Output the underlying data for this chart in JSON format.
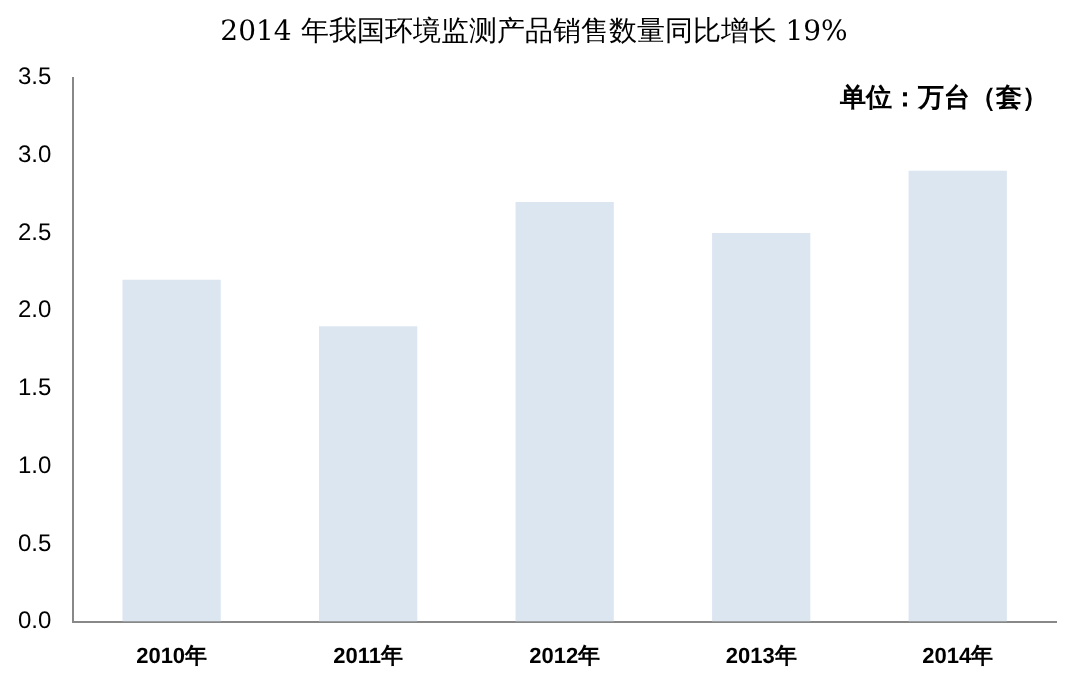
{
  "chart_data": {
    "type": "bar",
    "title": "2014 年我国环境监测产品销售数量同比增长 19%",
    "annotations": [
      "单位：万台（套）"
    ],
    "categories": [
      "2010年",
      "2011年",
      "2012年",
      "2013年",
      "2014年"
    ],
    "values": [
      2.2,
      1.9,
      2.7,
      2.5,
      2.9
    ],
    "color": "#dce6f1",
    "ylim": [
      0,
      3.5
    ],
    "yticks": [
      {
        "value": 0,
        "label": "0.0"
      },
      {
        "value": 0.5,
        "label": "0.5"
      },
      {
        "value": 1,
        "label": "1.0"
      },
      {
        "value": 1.5,
        "label": "1.5"
      },
      {
        "value": 2,
        "label": "2.0"
      },
      {
        "value": 2.5,
        "label": "2.5"
      },
      {
        "value": 3,
        "label": "3.0"
      },
      {
        "value": 3.5,
        "label": "3.5"
      }
    ],
    "grid": false,
    "legend": false
  }
}
